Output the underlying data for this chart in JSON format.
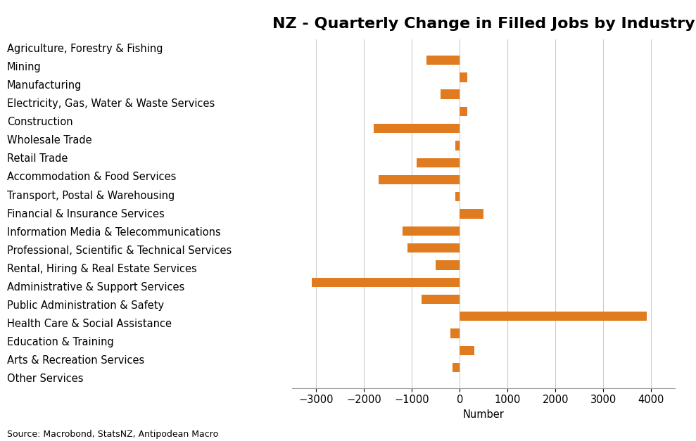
{
  "title": "NZ - Quarterly Change in Filled Jobs by Industry",
  "categories": [
    "Agriculture, Forestry & Fishing",
    "Mining",
    "Manufacturing",
    "Electricity, Gas, Water & Waste Services",
    "Construction",
    "Wholesale Trade",
    "Retail Trade",
    "Accommodation & Food Services",
    "Transport, Postal & Warehousing",
    "Financial & Insurance Services",
    "Information Media & Telecommunications",
    "Professional, Scientific & Technical Services",
    "Rental, Hiring & Real Estate Services",
    "Administrative & Support Services",
    "Public Administration & Safety",
    "Health Care & Social Assistance",
    "Education & Training",
    "Arts & Recreation Services",
    "Other Services"
  ],
  "values": [
    -700,
    150,
    -400,
    150,
    -1800,
    -100,
    -900,
    -1700,
    -100,
    500,
    -1200,
    -1100,
    -500,
    -3100,
    -800,
    3900,
    -200,
    300,
    -150
  ],
  "bar_color": "#e07b20",
  "xlabel": "Number",
  "xlim": [
    -3500,
    4500
  ],
  "xticks": [
    -3000,
    -2000,
    -1000,
    0,
    1000,
    2000,
    3000,
    4000
  ],
  "source_text": "Source: Macrobond, StatsNZ, Antipodean Macro",
  "background_color": "#ffffff",
  "title_fontsize": 16,
  "label_fontsize": 10.5,
  "tick_fontsize": 10.5
}
